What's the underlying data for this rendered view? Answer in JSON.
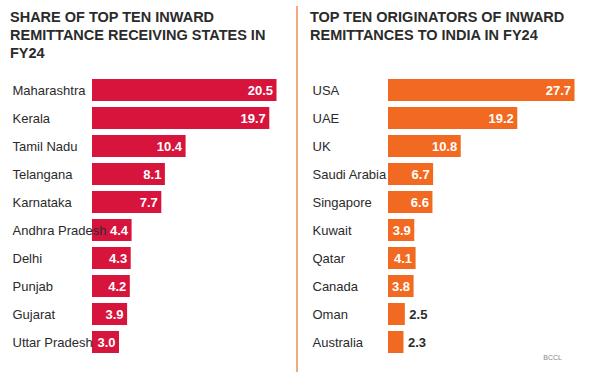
{
  "chart_data": [
    {
      "type": "bar",
      "orientation": "horizontal",
      "title": "SHARE OF TOP TEN INWARD REMITTANCE RECEIVING STATES IN FY24",
      "categories": [
        "Maharashtra",
        "Kerala",
        "Tamil Nadu",
        "Telangana",
        "Karnataka",
        "Andhra Pradesh",
        "Delhi",
        "Punjab",
        "Gujarat",
        "Uttar Pradesh"
      ],
      "values": [
        20.5,
        19.7,
        10.4,
        8.1,
        7.7,
        4.4,
        4.3,
        4.2,
        3.9,
        3.0
      ],
      "value_labels": [
        "20.5",
        "19.7",
        "10.4",
        "8.1",
        "7.7",
        "4.4",
        "4.3",
        "4.2",
        "3.9",
        "3.0"
      ],
      "color": "#d7143c",
      "xlim": [
        0,
        22
      ],
      "data_labels": true,
      "tick_labels": "y",
      "grid": false
    },
    {
      "type": "bar",
      "orientation": "horizontal",
      "title": "TOP TEN ORIGINATORS OF INWARD REMITTANCES TO INDIA IN FY24",
      "categories": [
        "USA",
        "UAE",
        "UK",
        "Saudi Arabia",
        "Singapore",
        "Kuwait",
        "Qatar",
        "Canada",
        "Oman",
        "Australia"
      ],
      "values": [
        27.7,
        19.2,
        10.8,
        6.7,
        6.6,
        3.9,
        4.1,
        3.8,
        2.5,
        2.3
      ],
      "color": "#f26a21",
      "xlim": [
        0,
        30
      ],
      "data_labels": true,
      "tick_labels": "y",
      "grid": false,
      "annotations": [
        "BCCL"
      ]
    }
  ]
}
